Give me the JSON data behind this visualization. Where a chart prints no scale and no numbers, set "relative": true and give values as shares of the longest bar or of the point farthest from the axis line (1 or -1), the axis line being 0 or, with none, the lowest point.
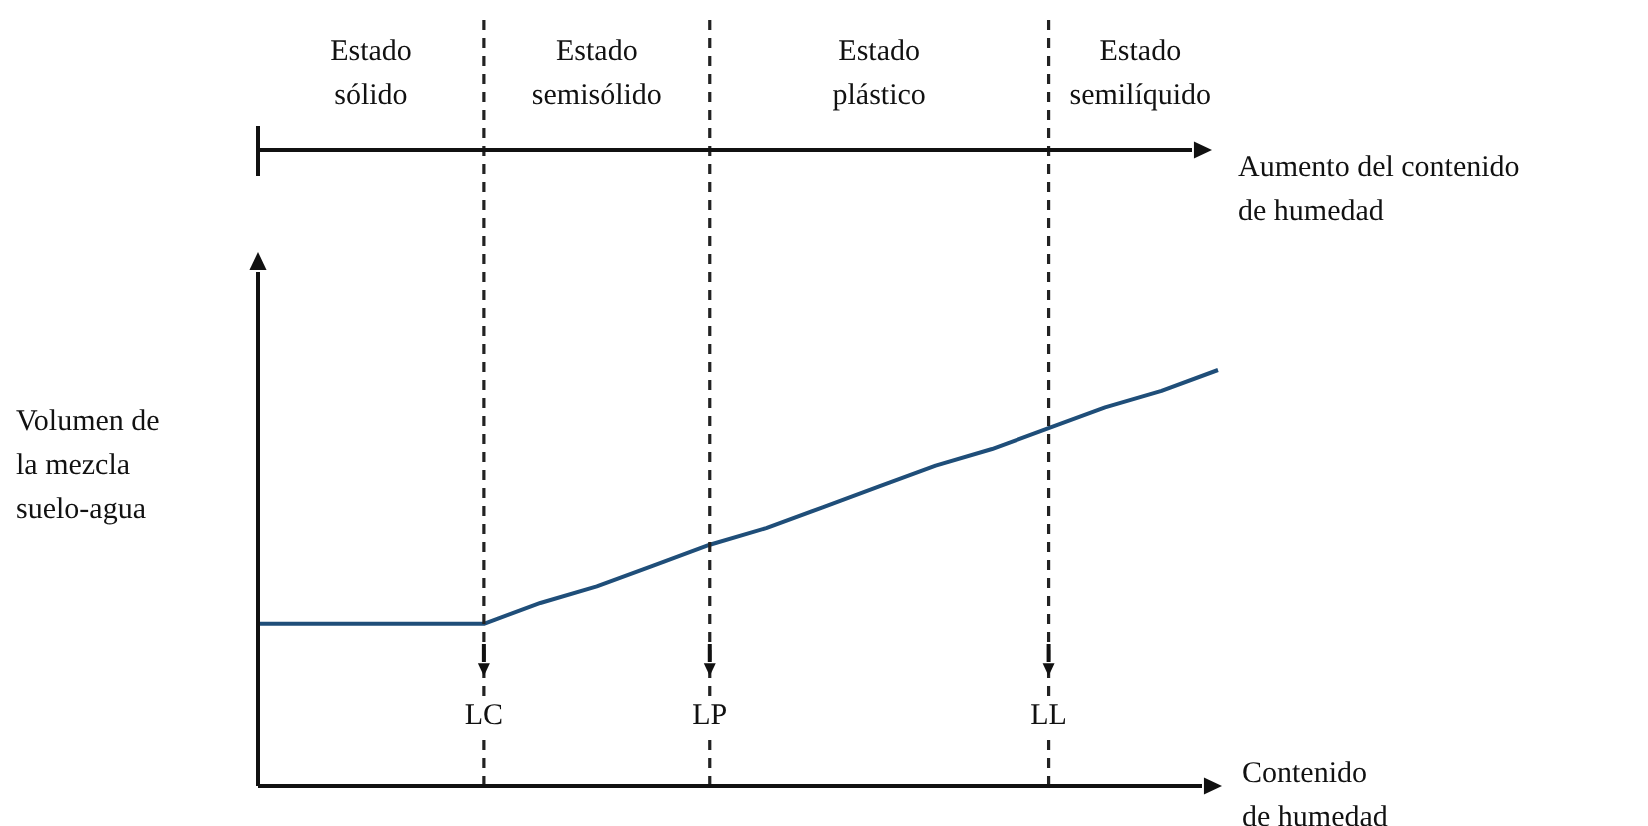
{
  "chart_data": {
    "type": "line",
    "relative": true,
    "xlabel": "Contenido\nde humedad",
    "ylabel": "Volumen de\nla mezcla\nsuelo-agua",
    "categories": [
      null,
      null,
      null,
      null,
      "LC",
      null,
      null,
      null,
      "LP",
      null,
      null,
      null,
      null,
      null,
      "LL",
      null,
      null,
      null
    ],
    "series": [
      {
        "color": "#1f4e79",
        "values": [
          0.39,
          0.39,
          0.39,
          0.39,
          0.39,
          0.44,
          0.48,
          0.53,
          0.58,
          0.62,
          0.67,
          0.72,
          0.77,
          0.81,
          0.86,
          0.91,
          0.95,
          1
        ]
      }
    ],
    "ref_lines": [
      {
        "axis": "x",
        "value": "LC",
        "line_style": "dashed"
      },
      {
        "axis": "x",
        "value": "LP",
        "line_style": "dashed"
      },
      {
        "axis": "x",
        "value": "LL",
        "line_style": "dashed"
      }
    ],
    "annotations": [
      "Estado\nsólido",
      "Estado\nsemisólido",
      "Estado\nplástico",
      "Estado\nsemilíquido",
      "Aumento del contenido\nde humedad"
    ],
    "marker": "none",
    "line_style": "solid"
  }
}
